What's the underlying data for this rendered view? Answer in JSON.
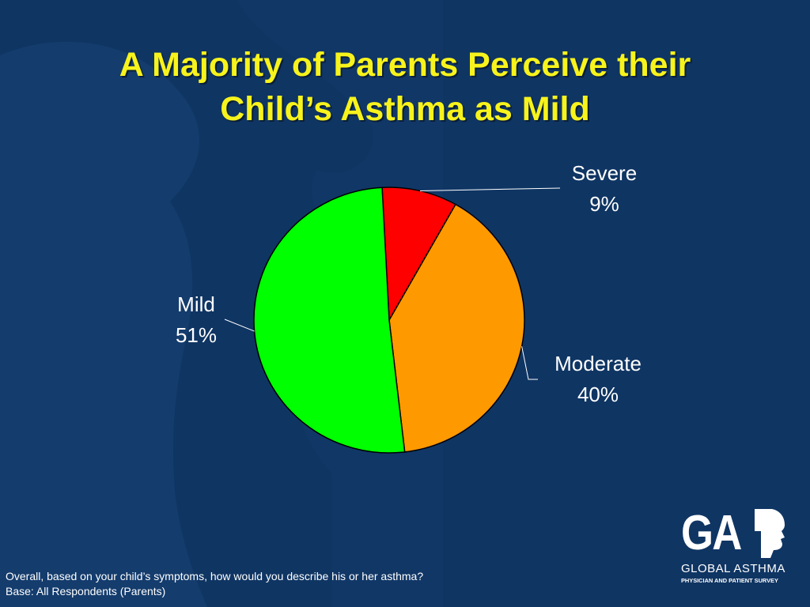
{
  "slide": {
    "title_line1": "A Majority of Parents Perceive their",
    "title_line2": "Child’s Asthma as Mild",
    "footer_question": "Overall, based on your child’s symptoms, how would you describe his or her asthma?",
    "footer_base": "Base: All Respondents (Parents)"
  },
  "logo": {
    "letters": "GA",
    "line1": "GLOBAL ASTHMA",
    "line2": "PHYSICIAN AND PATIENT SURVEY"
  },
  "colors": {
    "background": "#0f3563",
    "title": "#f7f31c",
    "severe": "#ff0000",
    "moderate": "#ff9900",
    "mild": "#00ff00"
  },
  "chart_data": {
    "type": "pie",
    "slices": [
      {
        "label": "Severe",
        "value": 9,
        "display": "9%",
        "color": "#ff0000"
      },
      {
        "label": "Moderate",
        "value": 40,
        "display": "40%",
        "color": "#ff9900"
      },
      {
        "label": "Mild",
        "value": 51,
        "display": "51%",
        "color": "#00ff00"
      }
    ]
  }
}
